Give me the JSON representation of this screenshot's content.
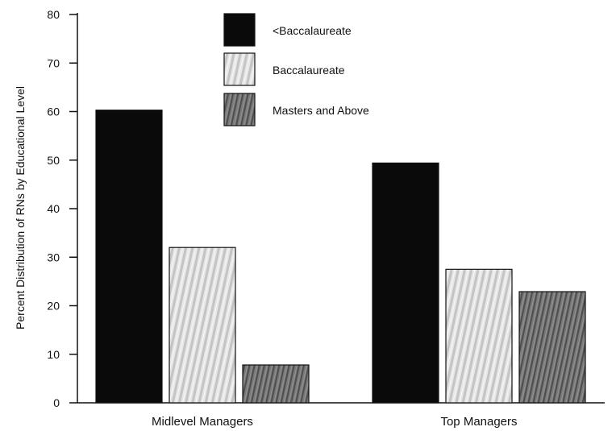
{
  "chart_data": {
    "type": "bar",
    "categories": [
      "Midlevel Managers",
      "Top Managers"
    ],
    "series": [
      {
        "name": "<Baccalaureate",
        "values": [
          60.3,
          49.4
        ],
        "color": "#0a0a0a",
        "pattern": "solid"
      },
      {
        "name": "Baccalaureate",
        "values": [
          32.0,
          27.5
        ],
        "color": "#dcdcdc",
        "pattern": "light-stripes"
      },
      {
        "name": "Masters and Above",
        "values": [
          7.8,
          22.9
        ],
        "color": "#6e6e6e",
        "pattern": "dark-stripes"
      }
    ],
    "title": "",
    "xlabel": "",
    "ylabel": "Percent Distribution of RNs by Educational Level",
    "ylim": [
      0,
      80
    ],
    "yticks": [
      0,
      10,
      20,
      30,
      40,
      50,
      60,
      70,
      80
    ],
    "grid": false,
    "legend_position": "top-center"
  }
}
